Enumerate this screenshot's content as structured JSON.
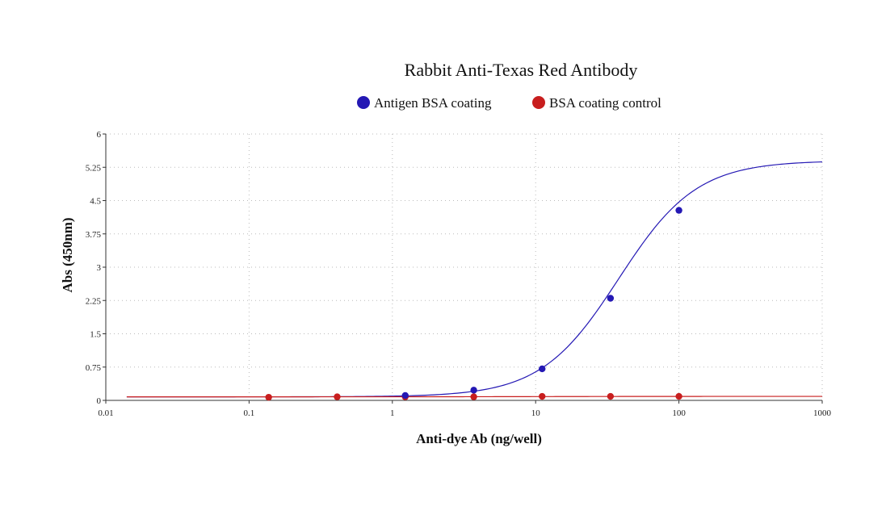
{
  "chart_data": {
    "type": "scatter",
    "title": "Rabbit Anti-Texas Red Antibody",
    "xlabel": "Anti-dye Ab (ng/well)",
    "ylabel": "Abs (450nm)",
    "x_scale": "log",
    "xlim": [
      0.01,
      1000
    ],
    "ylim": [
      0,
      6
    ],
    "x_ticks": [
      0.01,
      0.1,
      1,
      10,
      100,
      1000
    ],
    "x_tick_labels": [
      "0.01",
      "0.1",
      "1",
      "10",
      "100",
      "1000"
    ],
    "y_ticks": [
      0,
      0.75,
      1.5,
      2.25,
      3,
      3.75,
      4.5,
      5.25,
      6
    ],
    "y_tick_labels": [
      "0",
      "0.75",
      "1.5",
      "2.25",
      "3",
      "3.75",
      "4.5",
      "5.25",
      "6"
    ],
    "grid": true,
    "legend_position": "top-center",
    "series": [
      {
        "name": "Antigen BSA coating",
        "color": "#2418b4",
        "x": [
          1.23,
          3.7,
          11.1,
          33.3,
          100
        ],
        "y": [
          0.11,
          0.23,
          0.71,
          2.3,
          4.28
        ],
        "fit": {
          "bottom": 0.08,
          "top": 5.4,
          "ec50": 38,
          "hill": 1.6
        }
      },
      {
        "name": "BSA coating control",
        "color": "#c81e1e",
        "x": [
          0.137,
          0.412,
          1.23,
          3.7,
          11.1,
          33.3,
          100
        ],
        "y": [
          0.07,
          0.08,
          0.08,
          0.08,
          0.09,
          0.09,
          0.09
        ],
        "fit": {
          "bottom": 0.08,
          "top": 0.09,
          "ec50": 10,
          "hill": 1
        }
      }
    ]
  }
}
